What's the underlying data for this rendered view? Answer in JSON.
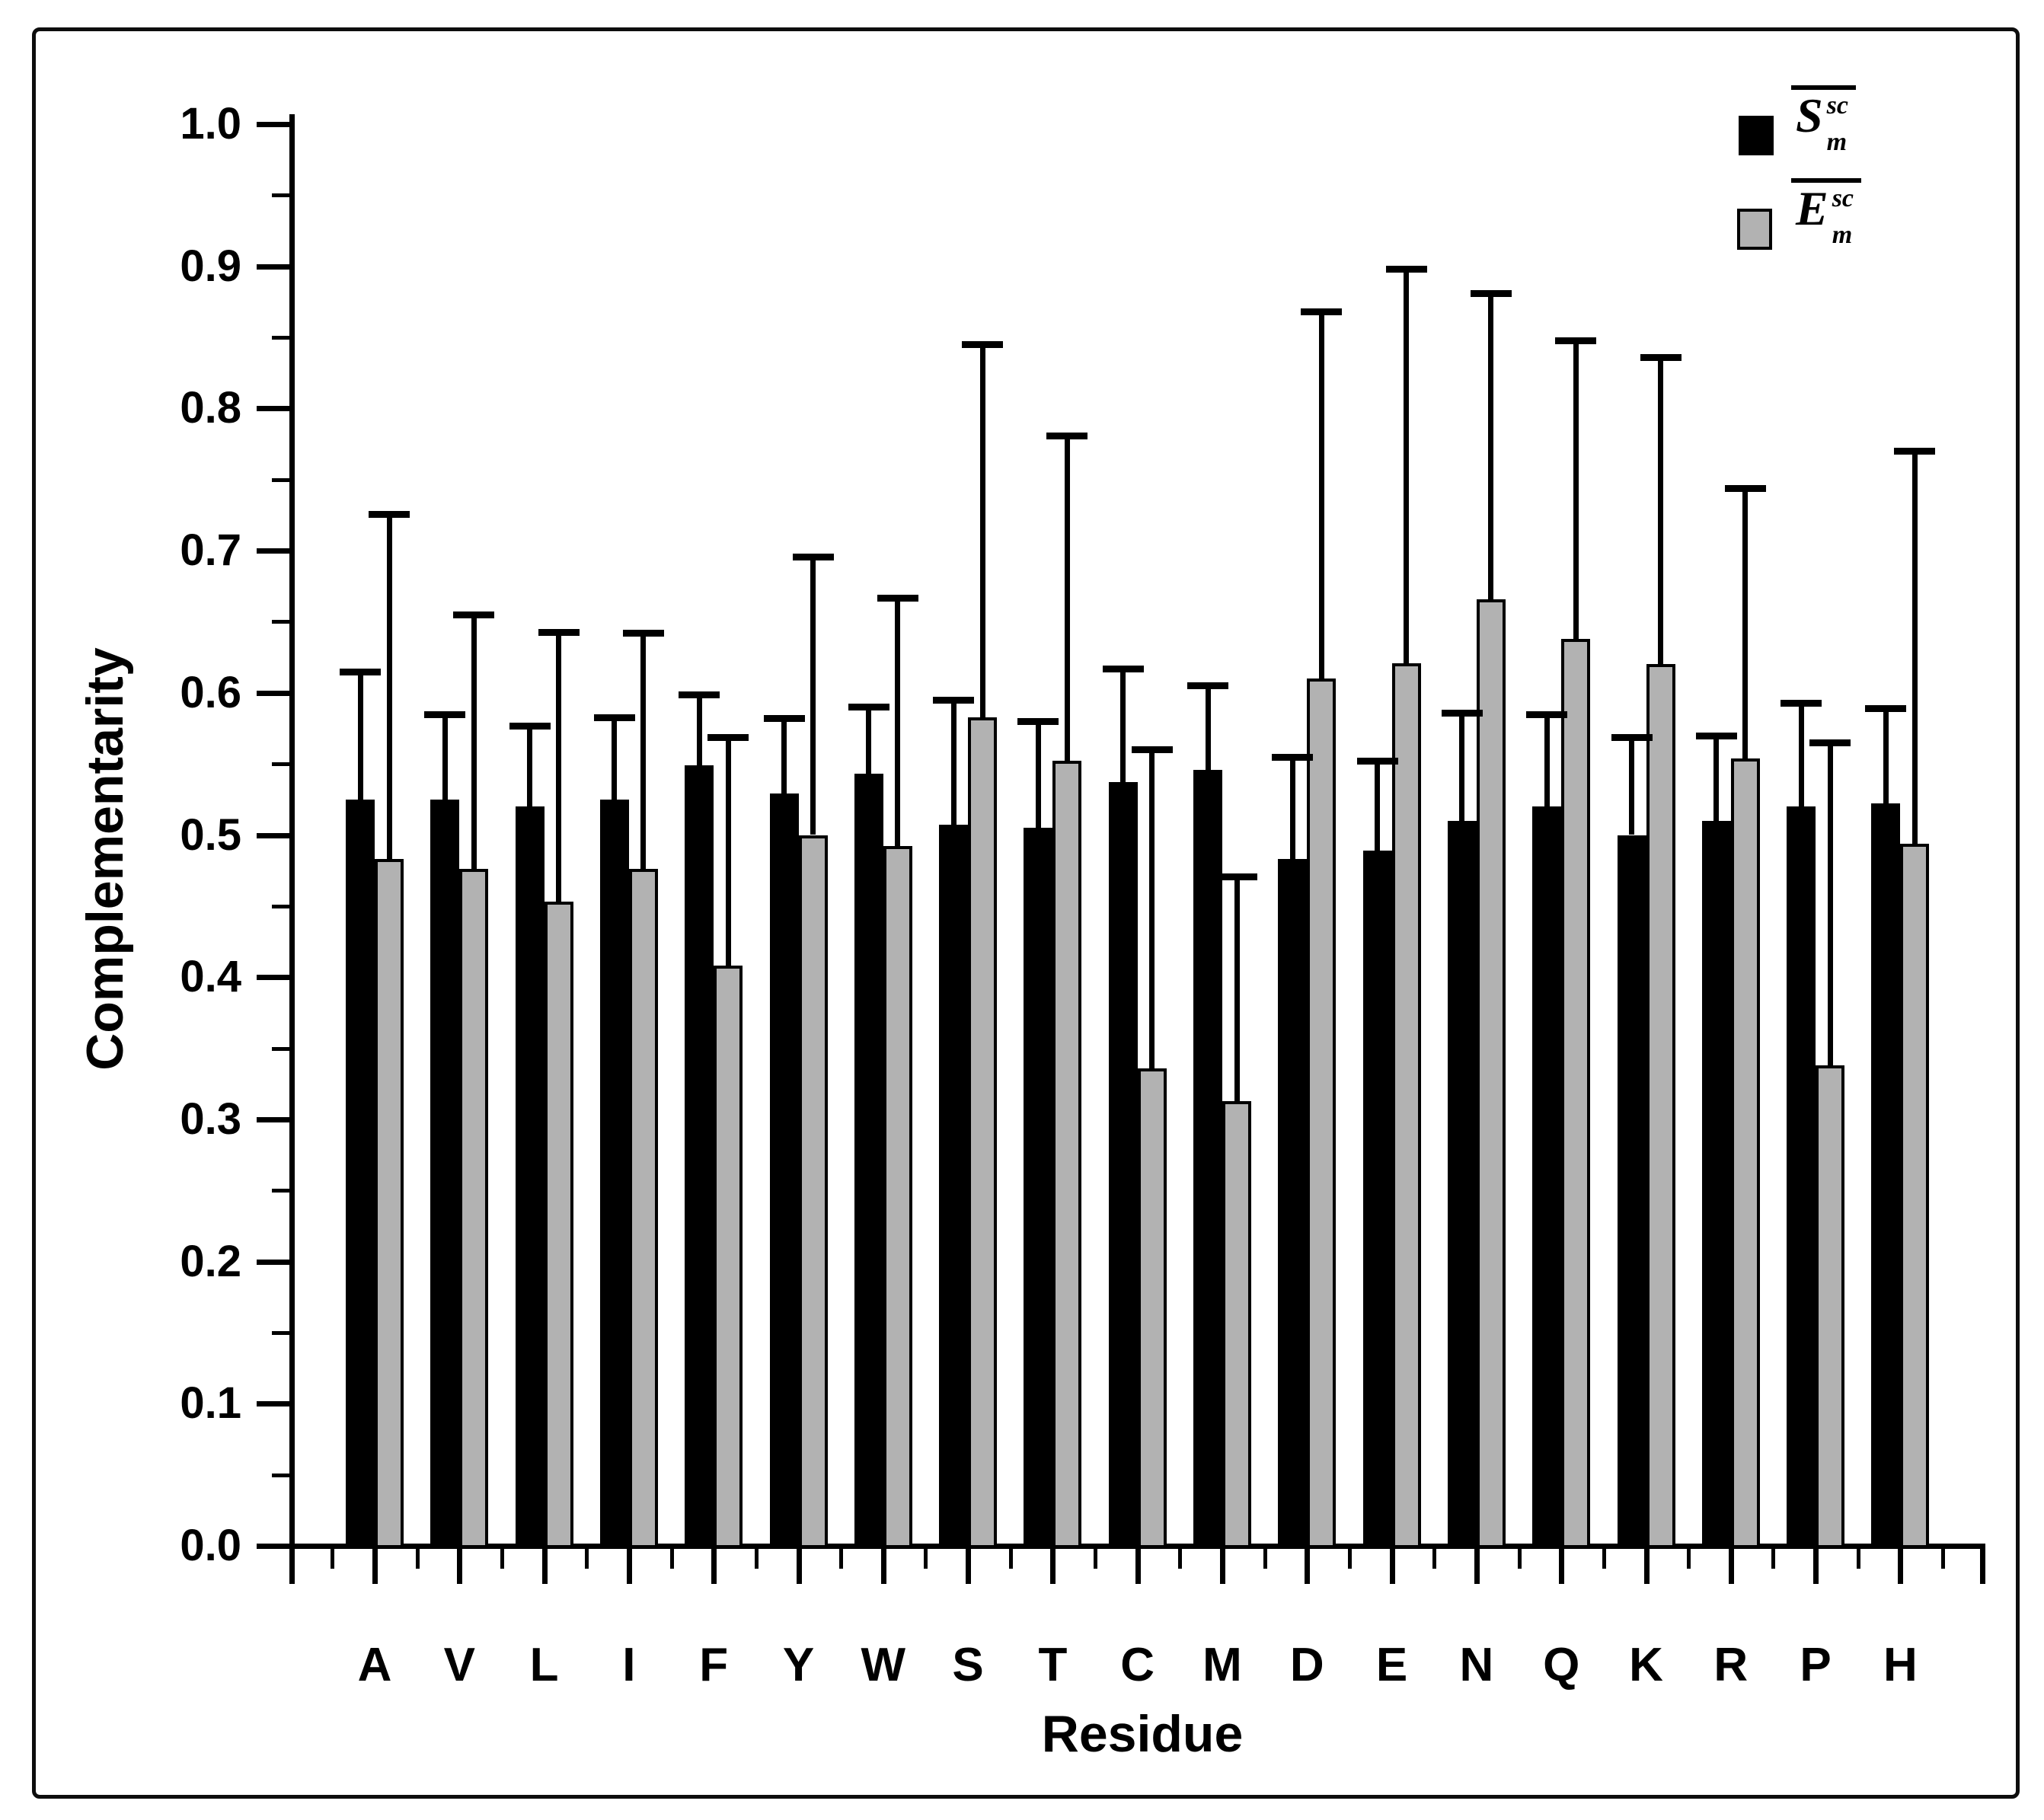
{
  "figure": {
    "background": "#ffffff",
    "border_color": "#0d0d0d"
  },
  "chart_data": {
    "type": "bar",
    "title": "",
    "xlabel": "Residue",
    "ylabel": "Complementarity",
    "ylim": [
      0.0,
      1.0
    ],
    "ytick_step": 0.1,
    "ytick_minor_step": 0.05,
    "ytick_labels": [
      "0.0",
      "0.1",
      "0.2",
      "0.3",
      "0.4",
      "0.5",
      "0.6",
      "0.7",
      "0.8",
      "0.9",
      "1.0"
    ],
    "grid": false,
    "legend_position": "top-right",
    "error_bars": "upper",
    "categories": [
      "A",
      "V",
      "L",
      "I",
      "F",
      "Y",
      "W",
      "S",
      "T",
      "C",
      "M",
      "D",
      "E",
      "N",
      "Q",
      "K",
      "R",
      "P",
      "H"
    ],
    "series": [
      {
        "name": "S_m_sc_mean",
        "legend": {
          "base": "S",
          "sup": "sc",
          "sub": "m",
          "overline": true
        },
        "color": "#000000",
        "values": [
          0.525,
          0.525,
          0.52,
          0.525,
          0.549,
          0.529,
          0.543,
          0.507,
          0.505,
          0.537,
          0.546,
          0.483,
          0.489,
          0.51,
          0.52,
          0.5,
          0.51,
          0.52,
          0.522
        ],
        "error_upper": [
          0.615,
          0.585,
          0.577,
          0.583,
          0.599,
          0.582,
          0.59,
          0.595,
          0.58,
          0.617,
          0.605,
          0.555,
          0.552,
          0.586,
          0.585,
          0.569,
          0.57,
          0.593,
          0.589
        ]
      },
      {
        "name": "E_m_sc_mean",
        "legend": {
          "base": "E",
          "sup": "sc",
          "sub": "m",
          "overline": true
        },
        "color": "#b2b2b2",
        "values": [
          0.483,
          0.476,
          0.453,
          0.476,
          0.408,
          0.5,
          0.492,
          0.583,
          0.552,
          0.336,
          0.313,
          0.61,
          0.621,
          0.666,
          0.638,
          0.62,
          0.554,
          0.338,
          0.494
        ],
        "error_upper": [
          0.726,
          0.655,
          0.643,
          0.642,
          0.569,
          0.696,
          0.667,
          0.845,
          0.781,
          0.56,
          0.471,
          0.868,
          0.898,
          0.881,
          0.848,
          0.836,
          0.744,
          0.565,
          0.77
        ]
      }
    ]
  }
}
